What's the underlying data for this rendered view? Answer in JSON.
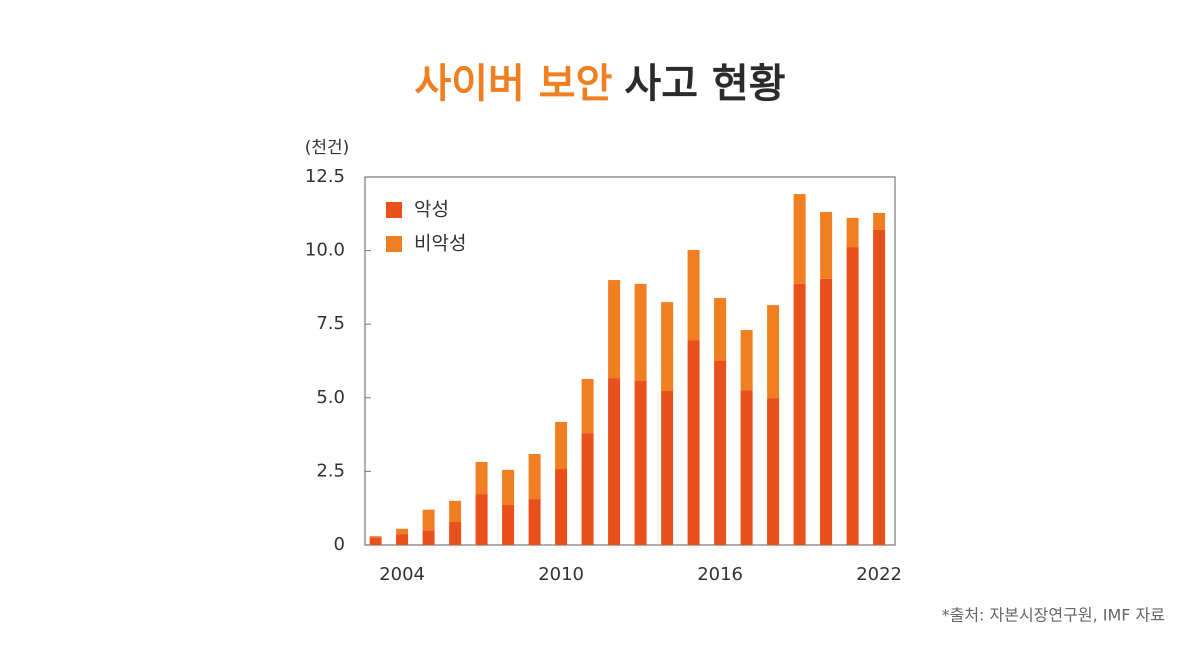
{
  "chart_data": {
    "type": "stacked_bar",
    "title": [
      "사이버 보안",
      "사고 현황"
    ],
    "y_unit": "(천건)",
    "source": "*출처: 자본시장연구원, IMF 자료",
    "x": [
      2003,
      2004,
      2005,
      2006,
      2007,
      2008,
      2009,
      2010,
      2011,
      2012,
      2013,
      2014,
      2015,
      2016,
      2017,
      2018,
      2019,
      2020,
      2021,
      2022
    ],
    "xlim": [
      2002.6,
      2022.6
    ],
    "xticks": [
      2004,
      2010,
      2016,
      2022
    ],
    "ylim": [
      0,
      12.5
    ],
    "yticks": [
      0,
      2.5,
      {
        "value": 5,
        "label": "5.0"
      },
      7.5,
      {
        "value": 10,
        "label": "10.0"
      },
      12.5
    ],
    "grid": false,
    "legend": "top-left",
    "series": [
      {
        "name": "악성",
        "color": "#e8501c",
        "values": [
          0.25,
          0.37,
          0.5,
          0.78,
          1.73,
          1.36,
          1.56,
          2.58,
          3.8,
          5.67,
          5.57,
          5.23,
          6.96,
          6.25,
          5.26,
          4.99,
          8.87,
          9.04,
          10.12,
          10.7
        ]
      },
      {
        "name": "비악성",
        "color": "#f07f22",
        "values": [
          0.05,
          0.18,
          0.7,
          0.72,
          1.09,
          1.19,
          1.53,
          1.6,
          1.84,
          3.33,
          3.3,
          3.02,
          3.06,
          2.14,
          2.04,
          3.16,
          3.05,
          2.27,
          0.99,
          0.58
        ]
      }
    ]
  }
}
